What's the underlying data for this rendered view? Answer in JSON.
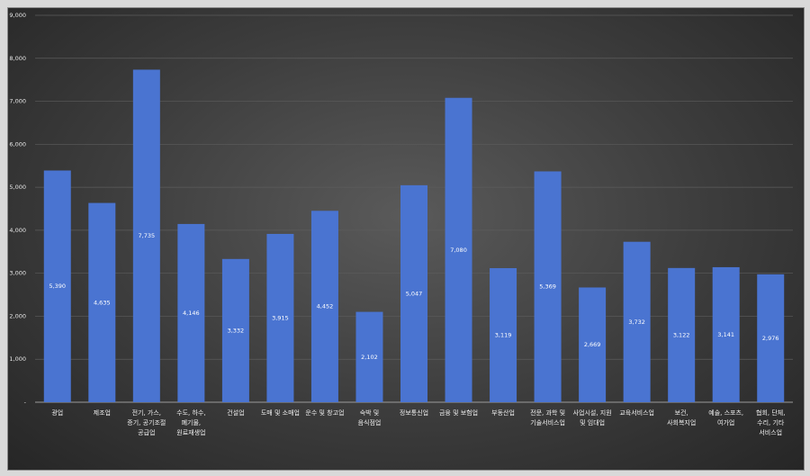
{
  "chart_data": {
    "type": "bar",
    "ylim": [
      0,
      9000
    ],
    "yticks": [
      {
        "value": 0,
        "label": "-"
      },
      {
        "value": 1000,
        "label": "1,000"
      },
      {
        "value": 2000,
        "label": "2,000"
      },
      {
        "value": 3000,
        "label": "3,000"
      },
      {
        "value": 4000,
        "label": "4,000"
      },
      {
        "value": 5000,
        "label": "5,000"
      },
      {
        "value": 6000,
        "label": "6,000"
      },
      {
        "value": 7000,
        "label": "7,000"
      },
      {
        "value": 8000,
        "label": "8,000"
      },
      {
        "value": 9000,
        "label": "9,000"
      }
    ],
    "grid": true,
    "bar_color": "#4a74d1",
    "categories": [
      [
        "광업"
      ],
      [
        "제조업"
      ],
      [
        "전기, 가스,",
        "증기, 공기조절",
        "공급업"
      ],
      [
        "수도, 하수,",
        "폐기물,",
        "원료재생업"
      ],
      [
        "건설업"
      ],
      [
        "도매 및 소매업"
      ],
      [
        "운수 및 창고업"
      ],
      [
        "숙박 및",
        "음식점업"
      ],
      [
        "정보통신업"
      ],
      [
        "금융 및 보험업"
      ],
      [
        "부동산업"
      ],
      [
        "전문, 과학 및",
        "기술서비스업"
      ],
      [
        "사업시설, 지원",
        "및 임대업"
      ],
      [
        "교육서비스업"
      ],
      [
        "보건,",
        "사회복지업"
      ],
      [
        "예술, 스포츠,",
        "여가업"
      ],
      [
        "협회, 단체,",
        "수리, 기타",
        "서비스업"
      ]
    ],
    "values": [
      5390,
      4635,
      7735,
      4146,
      3332,
      3915,
      4452,
      2102,
      5047,
      7080,
      3119,
      5369,
      2669,
      3732,
      3122,
      3141,
      2976
    ],
    "value_labels": [
      "5,390",
      "4,635",
      "7,735",
      "4,146",
      "3,332",
      "3,915",
      "4,452",
      "2,102",
      "5,047",
      "7,080",
      "3,119",
      "5,369",
      "2,669",
      "3,732",
      "3,122",
      "3,141",
      "2,976"
    ]
  }
}
